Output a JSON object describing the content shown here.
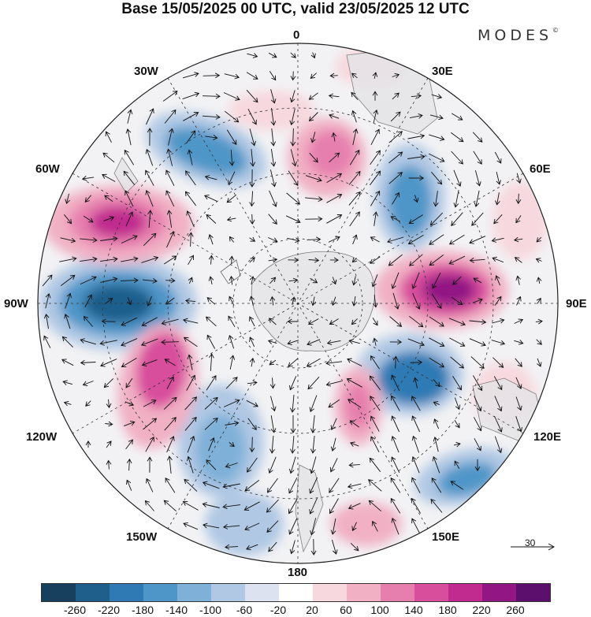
{
  "title": "Base 15/05/2025 00 UTC, valid 23/05/2025 12 UTC",
  "brand": {
    "name": "MODES",
    "mark": "©"
  },
  "longitude_labels": {
    "lon_0": "0",
    "lon_30e": "30E",
    "lon_60e": "60E",
    "lon_90e": "90E",
    "lon_120e": "120E",
    "lon_150e": "150E",
    "lon_180": "180",
    "lon_150w": "150W",
    "lon_120w": "120W",
    "lon_90w": "90W",
    "lon_60w": "60W",
    "lon_30w": "30W"
  },
  "reference_vector": {
    "value": "30"
  },
  "colorbar": {
    "ticks": [
      "-260",
      "-220",
      "-180",
      "-140",
      "-100",
      "-60",
      "-20",
      "20",
      "60",
      "100",
      "140",
      "180",
      "220",
      "260"
    ],
    "colors": [
      "#17405f",
      "#1f5f8c",
      "#2f7ab4",
      "#4f96c8",
      "#7fb0d8",
      "#b0c8e4",
      "#dde2f0",
      "#ffffff",
      "#f7d8de",
      "#f1b0c4",
      "#e67fae",
      "#d84e9c",
      "#c12a8e",
      "#921684",
      "#5c0f6c"
    ]
  }
}
